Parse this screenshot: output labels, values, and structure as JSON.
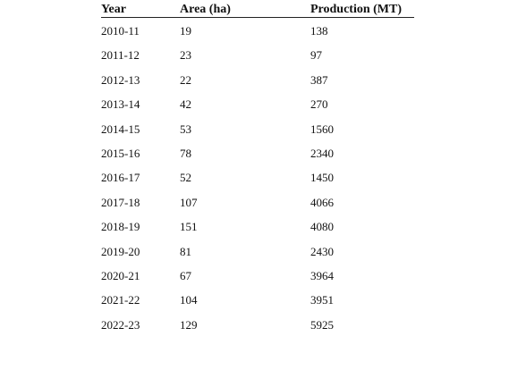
{
  "table": {
    "headers": {
      "year": "Year",
      "area": "Area (ha)",
      "production": "Production (MT)"
    },
    "rows": [
      {
        "year": "2010-11",
        "area": "19",
        "production": "138"
      },
      {
        "year": "2011-12",
        "area": "23",
        "production": "97"
      },
      {
        "year": "2012-13",
        "area": "22",
        "production": "387"
      },
      {
        "year": "2013-14",
        "area": "42",
        "production": "270"
      },
      {
        "year": "2014-15",
        "area": "53",
        "production": "1560"
      },
      {
        "year": "2015-16",
        "area": "78",
        "production": "2340"
      },
      {
        "year": "2016-17",
        "area": "52",
        "production": "1450"
      },
      {
        "year": "2017-18",
        "area": "107",
        "production": "4066"
      },
      {
        "year": "2018-19",
        "area": "151",
        "production": "4080"
      },
      {
        "year": "2019-20",
        "area": "81",
        "production": "2430"
      },
      {
        "year": "2020-21",
        "area": "67",
        "production": "3964"
      },
      {
        "year": "2021-22",
        "area": "104",
        "production": "3951"
      },
      {
        "year": "2022-23",
        "area": "129",
        "production": "5925"
      }
    ]
  }
}
